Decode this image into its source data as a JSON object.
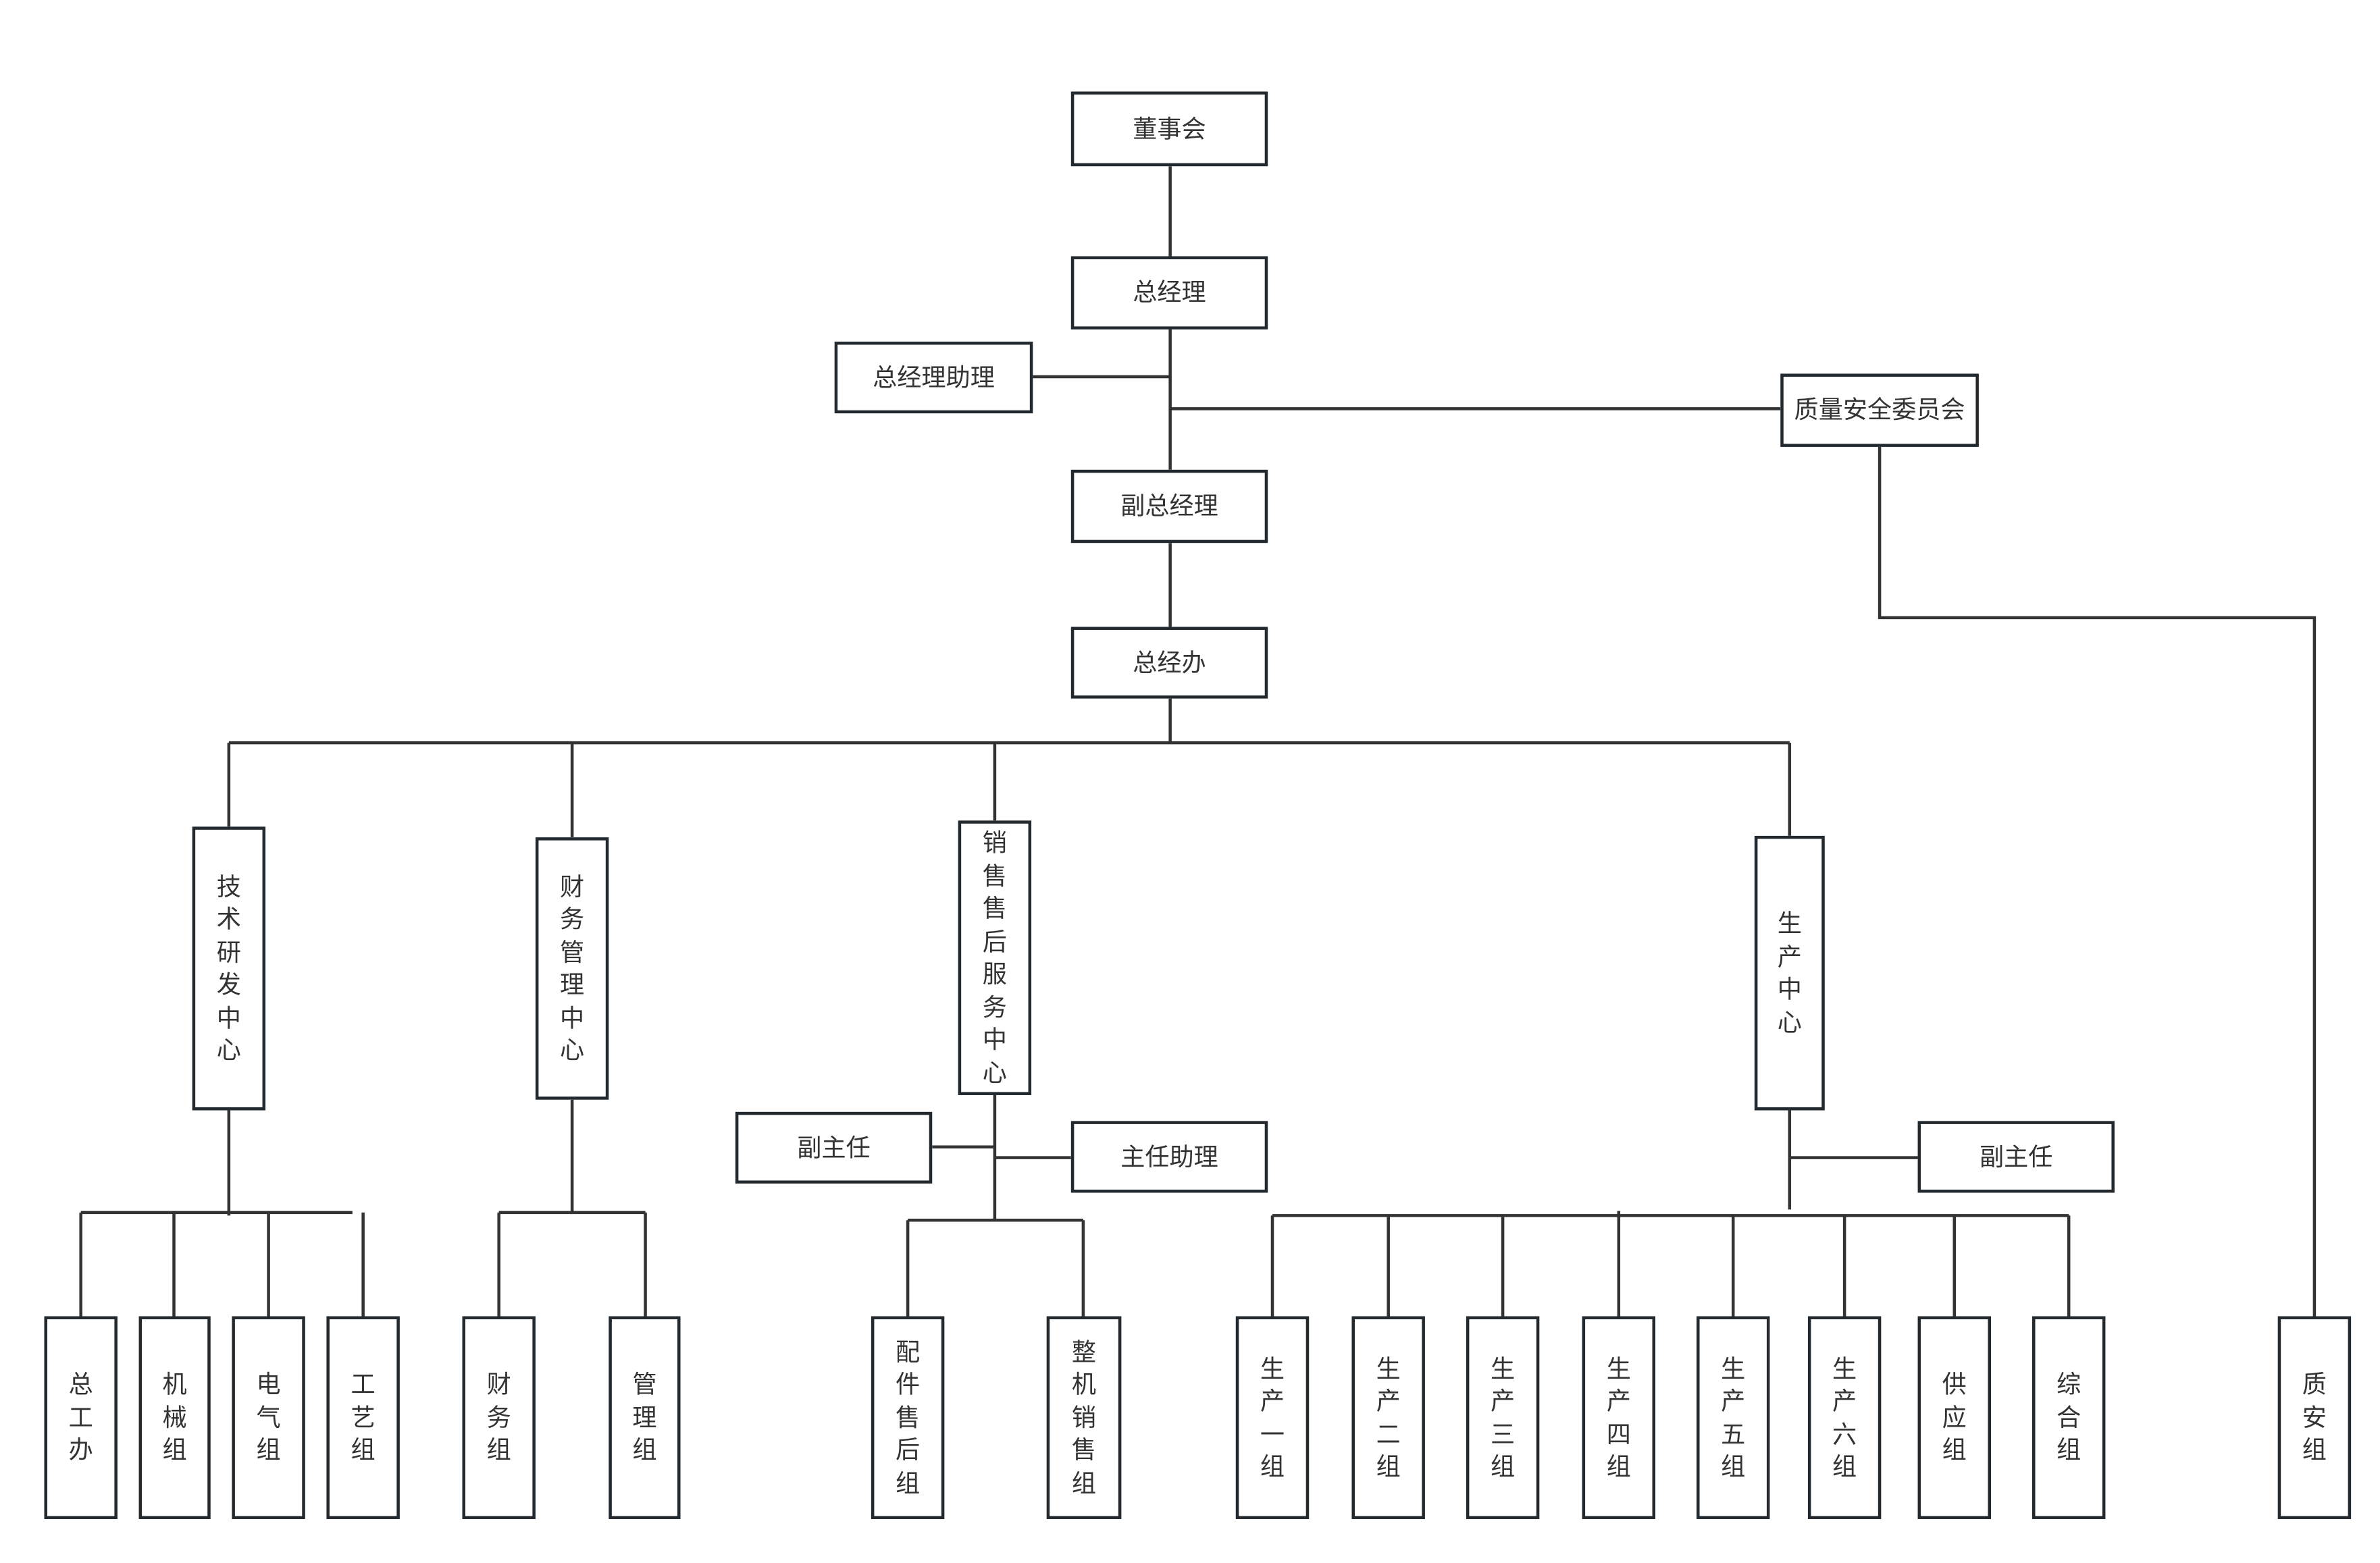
{
  "nodes": {
    "board": "董事会",
    "gm": "总经理",
    "gm_assistant": "总经理助理",
    "quality_committee": "质量安全委员会",
    "deputy_gm": "副总经理",
    "gm_office": "总经办",
    "tech_center": "技术研发中心",
    "finance_center": "财务管理中心",
    "sales_center": "销售售后服务中心",
    "production_center": "生产中心",
    "sales_deputy": "副主任",
    "sales_assistant": "主任助理",
    "production_deputy": "副主任",
    "chief_engineer_office": "总工办",
    "mechanical_group": "机械组",
    "electrical_group": "电气组",
    "process_group": "工艺组",
    "finance_group": "财务组",
    "management_group": "管理组",
    "parts_service_group": "配件售后组",
    "machine_sales_group": "整机销售组",
    "production_1": "生产一组",
    "production_2": "生产二组",
    "production_3": "生产三组",
    "production_4": "生产四组",
    "production_5": "生产五组",
    "production_6": "生产六组",
    "supply_group": "供应组",
    "general_group": "综合组",
    "quality_safety_group": "质安组"
  },
  "colors": {
    "border": "#22292f",
    "line": "#333333",
    "text": "#333333"
  }
}
